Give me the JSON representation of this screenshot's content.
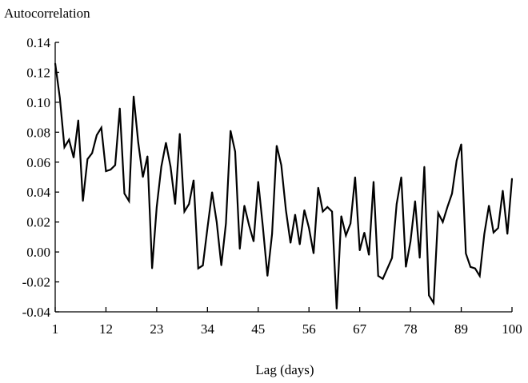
{
  "chart_data": {
    "type": "line",
    "title": "",
    "ylabel": "Autocorrelation",
    "xlabel": "Lag (days)",
    "xlim": [
      1,
      100
    ],
    "ylim": [
      -0.04,
      0.14
    ],
    "grid": false,
    "x_ticks": [
      1,
      12,
      23,
      34,
      45,
      56,
      67,
      78,
      89,
      100
    ],
    "y_ticks": [
      -0.04,
      -0.02,
      0.0,
      0.02,
      0.04,
      0.06,
      0.08,
      0.1,
      0.12,
      0.14
    ],
    "y_tick_labels": [
      "-0.04",
      "-0.02",
      "0.00",
      "0.02",
      "0.04",
      "0.06",
      "0.08",
      "0.10",
      "0.12",
      "0.14"
    ],
    "line_color": "#000000",
    "series": [
      {
        "x": [
          1,
          2,
          3,
          4,
          5,
          6,
          7,
          8,
          9,
          10,
          11,
          12,
          13,
          14,
          15,
          16,
          17,
          18,
          19,
          20,
          21,
          22,
          23,
          24,
          25,
          26,
          27,
          28,
          29,
          30,
          31,
          32,
          33,
          34,
          35,
          36,
          37,
          38,
          39,
          40,
          41,
          42,
          43,
          44,
          45,
          46,
          47,
          48,
          49,
          50,
          51,
          52,
          53,
          54,
          55,
          56,
          57,
          58,
          59,
          60,
          61,
          62,
          63,
          64,
          65,
          66,
          67,
          68,
          69,
          70,
          71,
          72,
          73,
          74,
          75,
          76,
          77,
          78,
          79,
          80,
          81,
          82,
          83,
          84,
          85,
          86,
          87,
          88,
          89,
          90,
          91,
          92,
          93,
          94,
          95,
          96,
          97,
          98,
          99,
          100
        ],
        "values": [
          0.126,
          0.103,
          0.07,
          0.075,
          0.063,
          0.088,
          0.034,
          0.062,
          0.066,
          0.078,
          0.083,
          0.054,
          0.055,
          0.058,
          0.096,
          0.039,
          0.034,
          0.104,
          0.073,
          0.05,
          0.064,
          -0.011,
          0.03,
          0.057,
          0.073,
          0.057,
          0.032,
          0.079,
          0.027,
          0.032,
          0.048,
          -0.011,
          -0.009,
          0.016,
          0.04,
          0.02,
          -0.009,
          0.019,
          0.081,
          0.067,
          0.002,
          0.031,
          0.018,
          0.007,
          0.047,
          0.017,
          -0.016,
          0.012,
          0.071,
          0.058,
          0.028,
          0.006,
          0.025,
          0.005,
          0.028,
          0.016,
          -0.001,
          0.043,
          0.027,
          0.03,
          0.027,
          -0.038,
          0.024,
          0.011,
          0.019,
          0.05,
          0.001,
          0.013,
          -0.002,
          0.047,
          -0.016,
          -0.018,
          -0.011,
          -0.004,
          0.032,
          0.05,
          -0.01,
          0.007,
          0.034,
          -0.004,
          0.057,
          -0.029,
          -0.034,
          0.026,
          0.02,
          0.03,
          0.039,
          0.061,
          0.072,
          -0.001,
          -0.01,
          -0.011,
          -0.016,
          0.012,
          0.031,
          0.013,
          0.016,
          0.041,
          0.012,
          0.049
        ]
      }
    ]
  }
}
